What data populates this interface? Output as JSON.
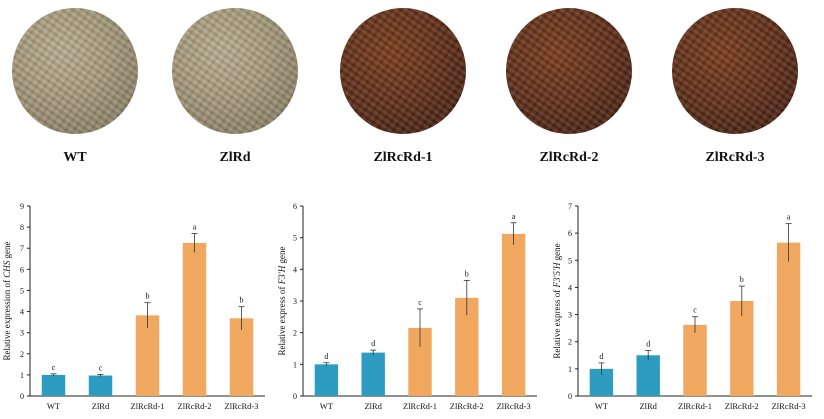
{
  "photos": [
    {
      "label": "WT",
      "tone": "light"
    },
    {
      "label": "ZlRd",
      "tone": "light"
    },
    {
      "label": "ZlRcRd-1",
      "tone": "dark"
    },
    {
      "label": "ZlRcRd-2",
      "tone": "dark"
    },
    {
      "label": "ZlRcRd-3",
      "tone": "dark"
    }
  ],
  "colors": {
    "wt": "#2e9cc0",
    "ox": "#f0a860"
  },
  "chart_data": [
    {
      "type": "bar",
      "categories": [
        "WT",
        "ZlRd",
        "ZlRcRd-1",
        "ZlRcRd-2",
        "ZlRcRd-3"
      ],
      "values": [
        1.0,
        0.97,
        3.82,
        7.25,
        3.68
      ],
      "errors": [
        0.05,
        0.05,
        0.6,
        0.45,
        0.55
      ],
      "letters": [
        "c",
        "c",
        "b",
        "a",
        "b"
      ],
      "ylabel_pre": "Relative expression of ",
      "ylabel_gene": "CHS",
      "ylabel_post": " gene",
      "ylim": [
        0,
        9
      ],
      "yticks": [
        "0",
        "1",
        "2",
        "3",
        "4",
        "5",
        "6",
        "7",
        "8",
        "9"
      ]
    },
    {
      "type": "bar",
      "categories": [
        "WT",
        "ZlRd",
        "ZlRcRd-1",
        "ZlRcRd-2",
        "ZlRcRd-3"
      ],
      "values": [
        1.0,
        1.37,
        2.15,
        3.1,
        5.12
      ],
      "errors": [
        0.05,
        0.08,
        0.6,
        0.55,
        0.35
      ],
      "letters": [
        "d",
        "d",
        "c",
        "b",
        "a"
      ],
      "ylabel_pre": "Relative express of ",
      "ylabel_gene": "F3'H",
      "ylabel_post": " gene",
      "ylim": [
        0,
        6
      ],
      "yticks": [
        "0",
        "1",
        "2",
        "3",
        "4",
        "5",
        "6"
      ]
    },
    {
      "type": "bar",
      "categories": [
        "WT",
        "ZlRd",
        "ZlRcRd-1",
        "ZlRcRd-2",
        "ZlRcRd-3"
      ],
      "values": [
        1.0,
        1.5,
        2.62,
        3.5,
        5.65
      ],
      "errors": [
        0.22,
        0.18,
        0.3,
        0.55,
        0.7
      ],
      "letters": [
        "d",
        "d",
        "c",
        "b",
        "a"
      ],
      "ylabel_pre": "Relative express of ",
      "ylabel_gene": "F3'5'H",
      "ylabel_post": " gene",
      "ylim": [
        0,
        7
      ],
      "yticks": [
        "0",
        "1",
        "2",
        "3",
        "4",
        "5",
        "6",
        "7"
      ]
    }
  ]
}
